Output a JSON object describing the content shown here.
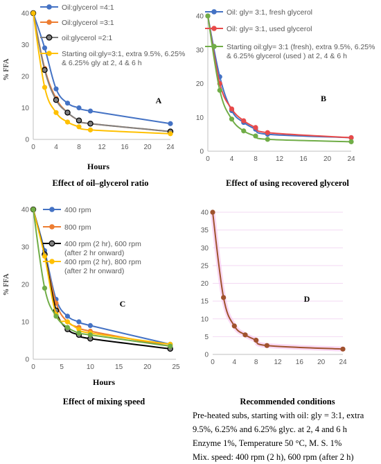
{
  "chart_data": [
    {
      "type": "line",
      "panel_label": "A",
      "ylabel": "% FFA",
      "xlabel": "Hours",
      "caption": "Effect of oil–glycerol ratio",
      "xlim": [
        0,
        24
      ],
      "ylim": [
        0,
        40
      ],
      "xticks": [
        0,
        4,
        8,
        12,
        16,
        20,
        24
      ],
      "yticks": [
        0,
        10,
        20,
        30,
        40
      ],
      "series": [
        {
          "name": "Oil:glycerol =4:1",
          "color": "#4472C4",
          "x": [
            0,
            2,
            4,
            6,
            8,
            10,
            24
          ],
          "y": [
            40,
            29,
            16,
            11.5,
            10,
            9,
            5
          ]
        },
        {
          "name": "Oil:glycerol =3:1",
          "color": "#ED7D31",
          "x": [
            0,
            2,
            4,
            6,
            8,
            10,
            24
          ],
          "y": [
            40,
            22.5,
            13,
            8.5,
            6,
            5,
            2.5
          ]
        },
        {
          "name": "oil:glycerol =2:1",
          "color": "#7F7F7F",
          "x": [
            0,
            2,
            4,
            6,
            8,
            10,
            24
          ],
          "y": [
            40,
            22,
            12.5,
            8.5,
            6,
            5,
            2.5
          ]
        },
        {
          "name": "Starting oil:gly=3:1, extra 9.5%, 6.25% & 6.25% gly at 2, 4 & 6 h",
          "color": "#FFC000",
          "x": [
            0,
            2,
            4,
            6,
            8,
            10,
            24
          ],
          "y": [
            40,
            16.5,
            8.5,
            5.5,
            4,
            3,
            1.8
          ]
        }
      ]
    },
    {
      "type": "line",
      "panel_label": "B",
      "caption": "Effect of using recovered glycerol",
      "xlim": [
        0,
        24
      ],
      "ylim": [
        0,
        40
      ],
      "xticks": [
        0,
        4,
        8,
        12,
        16,
        20,
        24
      ],
      "yticks": [
        0,
        10,
        20,
        30,
        40
      ],
      "series": [
        {
          "name": "Oil: gly= 3:1, fresh glycerol",
          "color": "#4472C4",
          "x": [
            0,
            2,
            4,
            6,
            8,
            10,
            24
          ],
          "y": [
            40,
            22,
            12,
            8.5,
            6.5,
            5,
            4
          ]
        },
        {
          "name": "Oil: gly= 3:1, used glycerol",
          "color": "#E84A4A",
          "x": [
            0,
            2,
            4,
            6,
            8,
            10,
            24
          ],
          "y": [
            40,
            20,
            12.5,
            9,
            7,
            5.5,
            4
          ]
        },
        {
          "name": "Starting oil:gly= 3:1 (fresh), extra 9.5%, 6.25% & 6.25% glycerol (used ) at 2, 4 & 6 h",
          "color": "#70AD47",
          "x": [
            0,
            2,
            4,
            6,
            8,
            10,
            24
          ],
          "y": [
            40,
            18,
            9.5,
            6,
            4.5,
            3.5,
            2.8
          ]
        }
      ]
    },
    {
      "type": "line",
      "panel_label": "C",
      "ylabel": "% FFA",
      "xlabel": "Hours",
      "caption": "Effect of mixing speed",
      "xlim": [
        0,
        25
      ],
      "ylim": [
        0,
        40
      ],
      "xticks": [
        0,
        5,
        10,
        15,
        20,
        25
      ],
      "yticks": [
        0,
        10,
        20,
        30,
        40
      ],
      "series": [
        {
          "name": "400 rpm",
          "color": "#4472C4",
          "x": [
            0,
            2,
            4,
            6,
            8,
            10,
            24
          ],
          "y": [
            40,
            29,
            16,
            11.5,
            10,
            9,
            4
          ]
        },
        {
          "name": "800 rpm",
          "color": "#ED7D31",
          "x": [
            0,
            2,
            4,
            6,
            8,
            10,
            24
          ],
          "y": [
            40,
            28,
            15,
            10,
            8.5,
            7.5,
            3.5
          ]
        },
        {
          "name": "400 rpm (2 hr), 600 rpm (after 2 hr onward)",
          "color": "#000000",
          "marker": "#7F7F7F",
          "x": [
            0,
            2,
            4,
            6,
            8,
            10,
            24
          ],
          "y": [
            40,
            28,
            13,
            8,
            6.5,
            5.5,
            2.8
          ]
        },
        {
          "name": "400 rpm (2 hr), 800 rpm (after 2 hr onward)",
          "color": "#FFC000",
          "x": [
            0,
            2,
            4,
            6,
            8,
            10,
            24
          ],
          "y": [
            40,
            27.5,
            12,
            10,
            8,
            7,
            4
          ]
        },
        {
          "name": "",
          "color": "#70AD47",
          "x": [
            0,
            2,
            4,
            6,
            8,
            10,
            24
          ],
          "y": [
            40,
            19,
            11.5,
            8.5,
            7,
            6.5,
            3.5
          ]
        }
      ]
    },
    {
      "type": "line",
      "panel_label": "D",
      "caption": "Recommended conditions",
      "xlim": [
        0,
        24
      ],
      "ylim": [
        0,
        40
      ],
      "xticks": [
        0,
        4,
        8,
        12,
        16,
        20,
        24
      ],
      "yticks": [
        0,
        5,
        10,
        15,
        20,
        25,
        30,
        35,
        40
      ],
      "series": [
        {
          "name": "",
          "color": "#A0522D",
          "x": [
            0,
            2,
            4,
            6,
            8,
            10,
            24
          ],
          "y": [
            40,
            16,
            8,
            5.5,
            4,
            2.5,
            1.5
          ]
        }
      ],
      "notes": [
        "Pre-heated subs, starting with oil: gly = 3:1, extra",
        "9.5%, 6.25% and 6.25% glyc. at 2, 4 and 6 h",
        "Enzyme 1%, Temperature 50 °C, M. S. 1%",
        "Mix. speed: 400 rpm (2 h), 600 rpm (after 2 h)"
      ]
    }
  ]
}
